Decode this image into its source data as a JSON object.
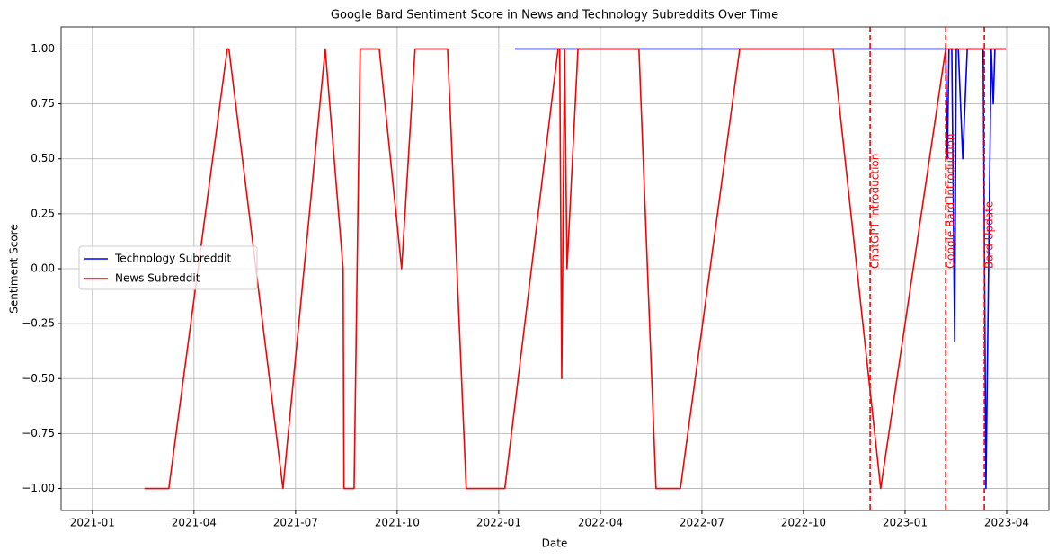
{
  "chart_data": {
    "type": "line",
    "title": "Google Bard Sentiment Score in News and Technology Subreddits Over Time",
    "xlabel": "Date",
    "ylabel": "Sentiment Score",
    "grid": true,
    "legend": "center left",
    "xlim": [
      2020.923,
      2023.354
    ],
    "ylim": [
      -1.1,
      1.1
    ],
    "xticks": [
      {
        "value": 2021.0,
        "label": "2021-01"
      },
      {
        "value": 2021.25,
        "label": "2021-04"
      },
      {
        "value": 2021.5,
        "label": "2021-07"
      },
      {
        "value": 2021.75,
        "label": "2021-10"
      },
      {
        "value": 2022.0,
        "label": "2022-01"
      },
      {
        "value": 2022.25,
        "label": "2022-04"
      },
      {
        "value": 2022.5,
        "label": "2022-07"
      },
      {
        "value": 2022.75,
        "label": "2022-10"
      },
      {
        "value": 2023.0,
        "label": "2023-01"
      },
      {
        "value": 2023.25,
        "label": "2023-04"
      }
    ],
    "yticks": [
      {
        "value": -1,
        "label": "−1.00"
      },
      {
        "value": -0.75,
        "label": "−0.75"
      },
      {
        "value": -0.5,
        "label": "−0.50"
      },
      {
        "value": -0.25,
        "label": "−0.25"
      },
      {
        "value": 0,
        "label": "0.00"
      },
      {
        "value": 0.25,
        "label": "0.25"
      },
      {
        "value": 0.5,
        "label": "0.50"
      },
      {
        "value": 0.75,
        "label": "0.75"
      },
      {
        "value": 1,
        "label": "1.00"
      }
    ],
    "series": [
      {
        "name": "Technology Subreddit",
        "color": "#0000ff",
        "x": [
          2022.04,
          2023.1,
          2023.104,
          2023.108,
          2023.115,
          2023.122,
          2023.126,
          2023.131,
          2023.142,
          2023.153,
          2023.192,
          2023.199,
          2023.212,
          2023.217,
          2023.221,
          2023.248
        ],
        "values": [
          1,
          1,
          0.5,
          1,
          1,
          -0.33,
          1,
          1,
          0.5,
          1,
          1,
          -1,
          1,
          0.75,
          1,
          1
        ]
      },
      {
        "name": "News Subreddit",
        "color": "#ff0000",
        "x": [
          2021.128,
          2021.188,
          2021.332,
          2021.336,
          2021.469,
          2021.573,
          2021.617,
          2021.619,
          2021.644,
          2021.659,
          2021.706,
          2021.761,
          2021.794,
          2021.874,
          2021.92,
          2022.015,
          2022.146,
          2022.15,
          2022.155,
          2022.162,
          2022.168,
          2022.195,
          2022.345,
          2022.387,
          2022.447,
          2022.593,
          2022.823,
          2022.94,
          2023.1,
          2023.248
        ],
        "values": [
          -1,
          -1,
          1,
          1,
          -1,
          1,
          0,
          -1,
          -1,
          1,
          1,
          0,
          1,
          1,
          -1,
          -1,
          1,
          1,
          -0.5,
          1,
          0,
          1,
          1,
          -1,
          -1,
          1,
          1,
          -1,
          1,
          1
        ]
      }
    ],
    "vlines": {
      "color": "#ff0000",
      "items": [
        {
          "x": 2022.914,
          "label": "ChatGPT Introduction"
        },
        {
          "x": 2023.1,
          "label": "Google Bard Introduction"
        },
        {
          "x": 2023.195,
          "label": "Bard Update"
        }
      ]
    }
  }
}
